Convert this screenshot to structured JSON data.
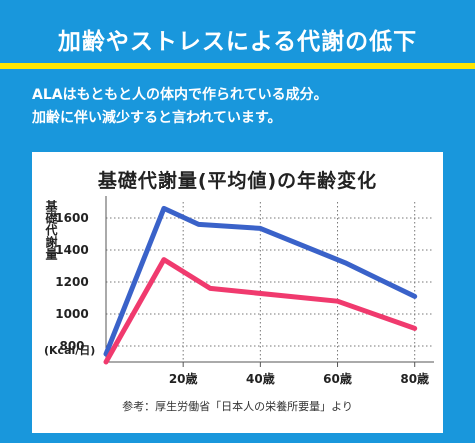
{
  "header": {
    "title": "加齢やストレスによる代謝の低下"
  },
  "intro": {
    "line1": "ALAはもともと人の体内で作られている成分。",
    "line2": "加齢に伴い減少すると言われています。"
  },
  "colors": {
    "background": "#1997dc",
    "accent_bar": "#ffe600",
    "series_blue": "#3a62c9",
    "series_pink": "#f03a6e"
  },
  "chart_data": {
    "type": "line",
    "title": "基礎代謝量(平均値)の年齢変化",
    "ylabel": "基礎代謝量",
    "unit_label": "(Kcal/日)",
    "source": "参考：厚生労働省「日本人の栄養所要量」より",
    "xlim": [
      0,
      85
    ],
    "ylim": [
      700,
      1700
    ],
    "x_ticks": [
      20,
      40,
      60,
      80
    ],
    "x_tick_labels": [
      "20歳",
      "40歳",
      "60歳",
      "80歳"
    ],
    "y_ticks": [
      800,
      1000,
      1200,
      1400,
      1600
    ],
    "grid": true,
    "series": [
      {
        "color": "#3a62c9",
        "points": [
          [
            0,
            750
          ],
          [
            15,
            1660
          ],
          [
            24,
            1560
          ],
          [
            40,
            1535
          ],
          [
            62,
            1320
          ],
          [
            80,
            1110
          ]
        ]
      },
      {
        "color": "#f03a6e",
        "points": [
          [
            0,
            700
          ],
          [
            15,
            1340
          ],
          [
            27,
            1160
          ],
          [
            60,
            1080
          ],
          [
            80,
            910
          ]
        ]
      }
    ]
  }
}
